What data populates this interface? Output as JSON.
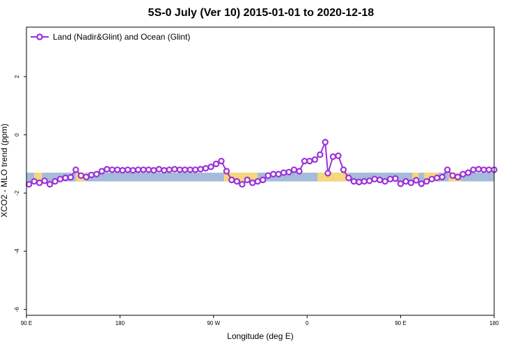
{
  "chart_data": {
    "type": "line",
    "title": "5S-0 July (Ver 10)   2015-01-01 to 2020-12-18",
    "xlabel": "Longitude (deg E)",
    "ylabel": "XCO2 - MLO trend (ppm)",
    "xlim": [
      0,
      360
    ],
    "ylim": [
      -6.2,
      3.7
    ],
    "x_ticks": [
      {
        "value": 0,
        "label": "90 E"
      },
      {
        "value": 72,
        "label": "180"
      },
      {
        "value": 144,
        "label": "90 W"
      },
      {
        "value": 216,
        "label": "0"
      },
      {
        "value": 288,
        "label": "90 E"
      },
      {
        "value": 360,
        "label": "180"
      }
    ],
    "y_ticks": [
      {
        "value": 2,
        "label": "2"
      },
      {
        "value": 0,
        "label": "0"
      },
      {
        "value": -2,
        "label": "-2"
      },
      {
        "value": -4,
        "label": "-4"
      },
      {
        "value": -6,
        "label": "-6"
      }
    ],
    "band": {
      "y_min": -1.6,
      "y_max": -1.3,
      "color": "#a5bbd9"
    },
    "land_segments": [
      {
        "x_min": 6,
        "x_max": 12
      },
      {
        "x_min": 38,
        "x_max": 46
      },
      {
        "x_min": 152,
        "x_max": 178
      },
      {
        "x_min": 224,
        "x_max": 248
      },
      {
        "x_min": 297,
        "x_max": 302
      },
      {
        "x_min": 306,
        "x_max": 317
      },
      {
        "x_min": 325,
        "x_max": 334
      }
    ],
    "land_color": "#f6d77c",
    "legend": {
      "position": "top-left"
    },
    "grid": false,
    "series": [
      {
        "name": "Land (Nadir&Glint) and Ocean (Glint)",
        "color": "#9b30d9",
        "x": [
          2,
          6,
          10,
          14,
          18,
          22,
          26,
          30,
          34,
          38,
          42,
          46,
          50,
          54,
          58,
          62,
          66,
          70,
          74,
          78,
          82,
          86,
          90,
          94,
          98,
          102,
          106,
          110,
          114,
          118,
          122,
          126,
          130,
          134,
          138,
          142,
          146,
          150,
          154,
          158,
          162,
          166,
          170,
          174,
          178,
          182,
          186,
          190,
          194,
          198,
          202,
          206,
          210,
          214,
          218,
          222,
          226,
          230,
          232,
          236,
          240,
          244,
          248,
          252,
          256,
          260,
          264,
          268,
          272,
          276,
          280,
          284,
          288,
          292,
          296,
          300,
          304,
          308,
          312,
          316,
          320,
          324,
          328,
          332,
          336,
          340,
          344,
          348,
          352,
          356,
          360
        ],
        "y": [
          -1.7,
          -1.6,
          -1.65,
          -1.58,
          -1.7,
          -1.6,
          -1.52,
          -1.48,
          -1.46,
          -1.2,
          -1.4,
          -1.45,
          -1.38,
          -1.35,
          -1.25,
          -1.18,
          -1.2,
          -1.2,
          -1.22,
          -1.2,
          -1.22,
          -1.2,
          -1.2,
          -1.2,
          -1.22,
          -1.18,
          -1.22,
          -1.2,
          -1.18,
          -1.2,
          -1.2,
          -1.2,
          -1.2,
          -1.18,
          -1.15,
          -1.1,
          -1.0,
          -0.9,
          -1.25,
          -1.55,
          -1.6,
          -1.7,
          -1.55,
          -1.65,
          -1.6,
          -1.55,
          -1.4,
          -1.35,
          -1.35,
          -1.3,
          -1.28,
          -1.2,
          -1.25,
          -0.9,
          -0.9,
          -0.85,
          -0.68,
          -0.25,
          -1.32,
          -0.75,
          -0.72,
          -1.2,
          -1.48,
          -1.6,
          -1.62,
          -1.6,
          -1.58,
          -1.52,
          -1.55,
          -1.6,
          -1.52,
          -1.5,
          -1.68,
          -1.6,
          -1.65,
          -1.56,
          -1.68,
          -1.6,
          -1.52,
          -1.48,
          -1.45,
          -1.2,
          -1.4,
          -1.45,
          -1.35,
          -1.3,
          -1.2,
          -1.18,
          -1.2,
          -1.2,
          -1.2
        ]
      }
    ]
  }
}
